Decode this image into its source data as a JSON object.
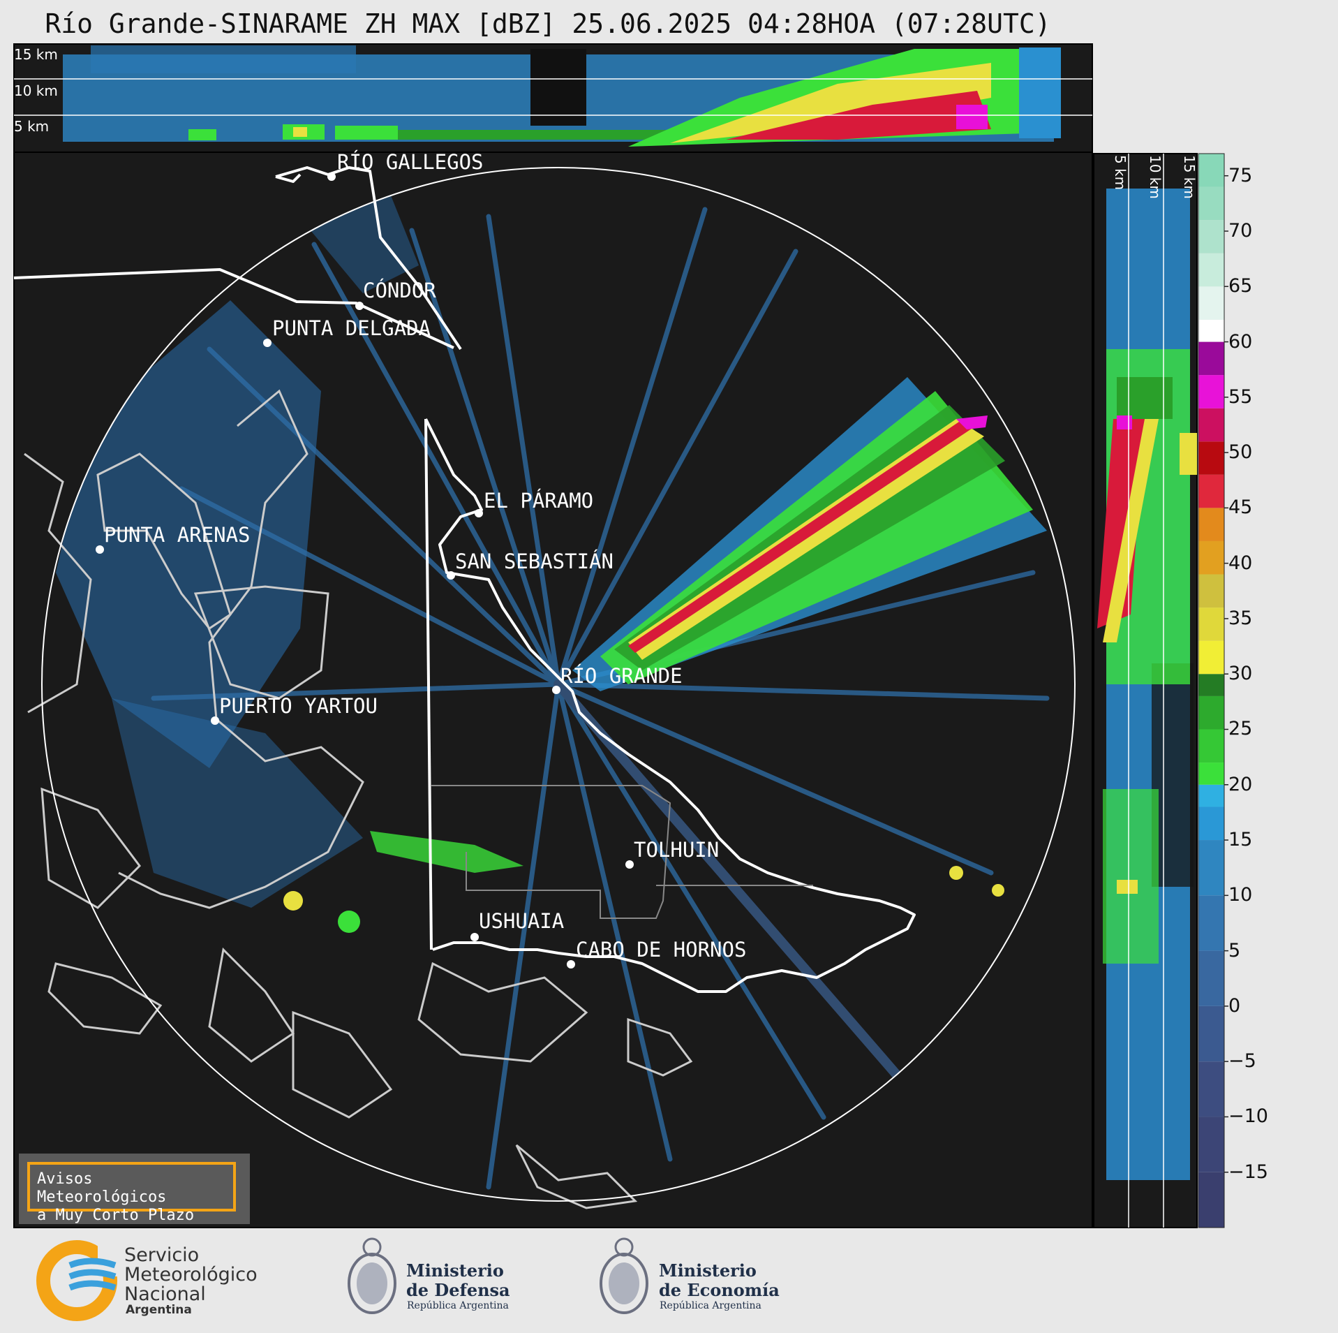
{
  "title": "Río Grande-SINARAME ZH MAX [dBZ] 25.06.2025 04:28HOA (07:28UTC)",
  "top_profile": {
    "labels": [
      "15 km",
      "10 km",
      "5 km"
    ]
  },
  "side_profile": {
    "labels": [
      "5 km",
      "10 km",
      "15 km"
    ]
  },
  "cities": [
    {
      "name": "RÍO GALLEGOS"
    },
    {
      "name": "CÓNDOR"
    },
    {
      "name": "PUNTA DELGADA"
    },
    {
      "name": "EL PÁRAMO"
    },
    {
      "name": "PUNTA ARENAS"
    },
    {
      "name": "SAN SEBASTIÁN"
    },
    {
      "name": "RÍO GRANDE"
    },
    {
      "name": "PUERTO YARTOU"
    },
    {
      "name": "TOLHUIN"
    },
    {
      "name": "USHUAIA"
    },
    {
      "name": "CABO DE HORNOS"
    }
  ],
  "colorbar": {
    "unit": "dBZ",
    "ticks": [
      "75",
      "70",
      "65",
      "60",
      "55",
      "50",
      "45",
      "40",
      "35",
      "30",
      "25",
      "20",
      "15",
      "10",
      "5",
      "0",
      "−5",
      "−10",
      "−15"
    ]
  },
  "alert_box": {
    "line1": "Avisos Meteorológicos",
    "line2": "a Muy Corto Plazo"
  },
  "logos": {
    "smn": {
      "line1": "Servicio",
      "line2": "Meteorológico",
      "line3": "Nacional",
      "line4": "Argentina",
      "icon": "smn-logo-icon"
    },
    "defensa": {
      "line1": "Ministerio",
      "line2": "de Defensa",
      "line3": "República Argentina",
      "icon": "coat-of-arms-icon"
    },
    "economia": {
      "line1": "Ministerio",
      "line2": "de Economía",
      "line3": "República Argentina",
      "icon": "coat-of-arms-icon"
    }
  },
  "colors": {
    "background": "#1a1a1a",
    "page": "#e8e8e8",
    "coast": "#ffffff",
    "foreign_coast": "#cccccc",
    "range_ring": "#ffffff",
    "alert_border": "#f4a416",
    "smn_orange": "#f4a416",
    "smn_blue": "#3aa0dc"
  }
}
